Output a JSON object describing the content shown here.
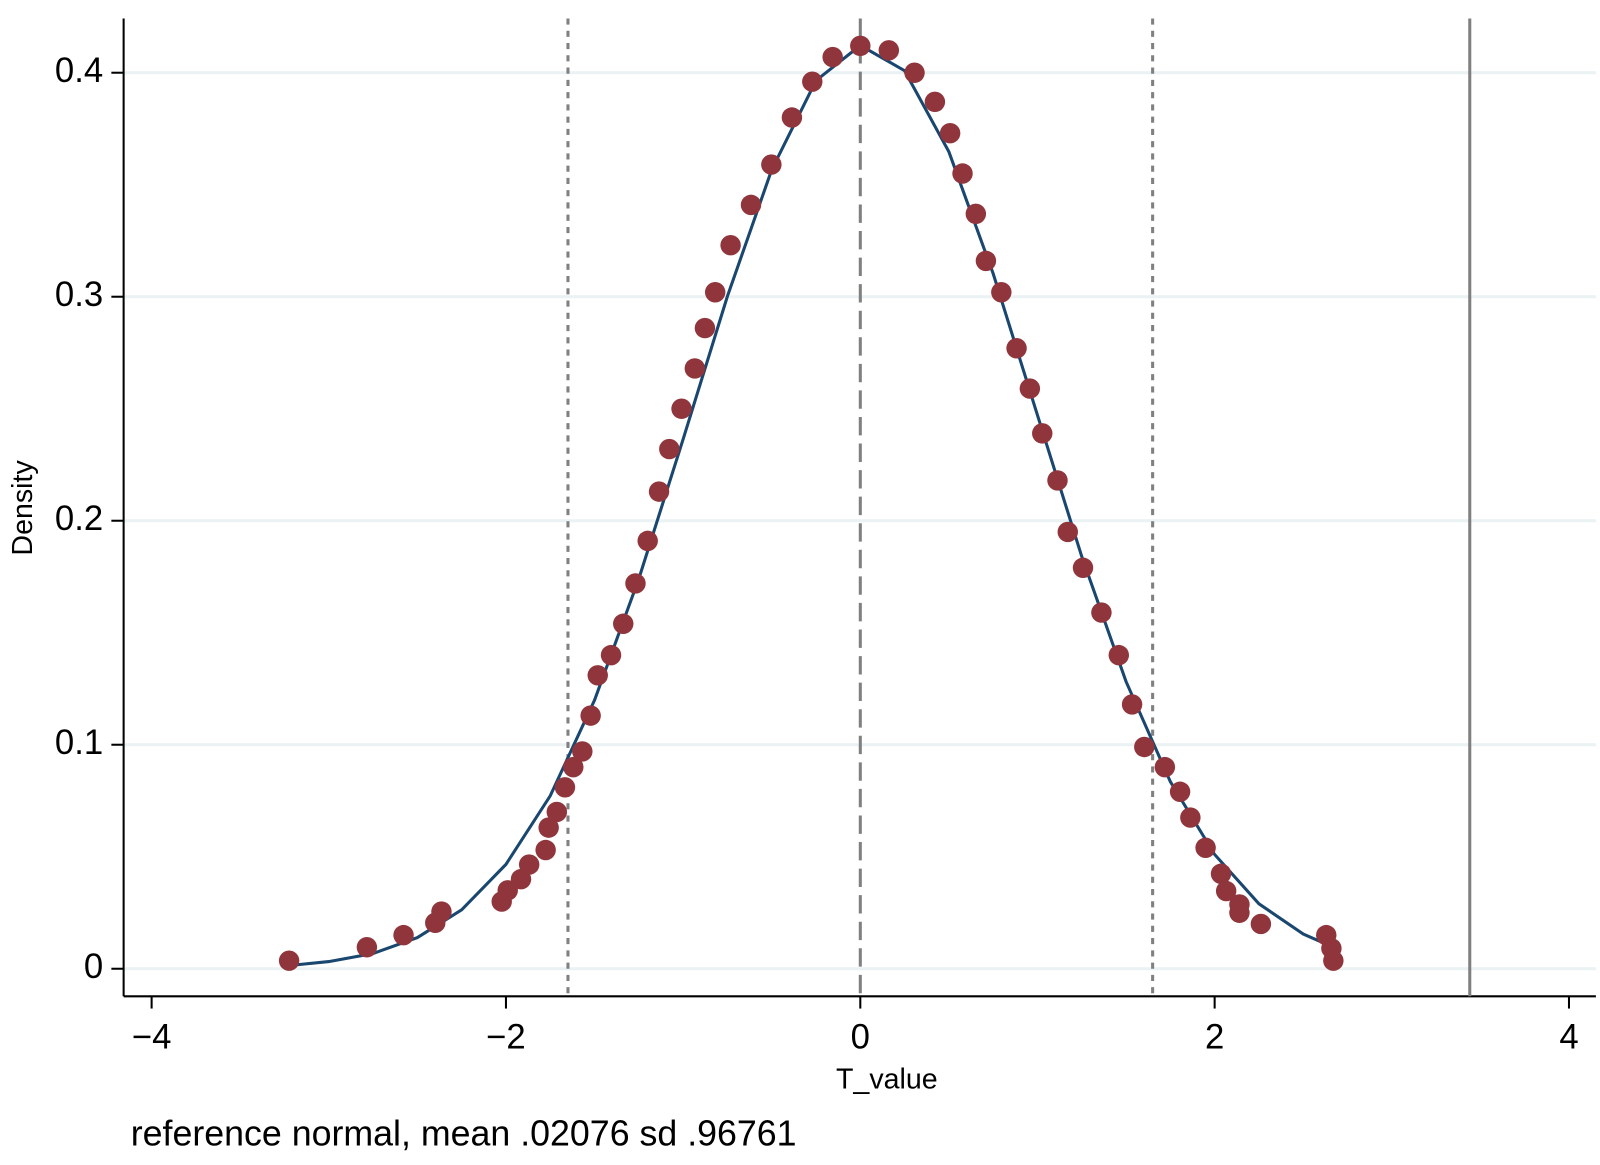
{
  "chart_data": {
    "type": "scatter",
    "xlabel": "T_value",
    "ylabel": "Density",
    "note": "reference normal, mean .02076 sd .96761",
    "xlim": [
      -4.158,
      4.152
    ],
    "ylim": [
      -0.0123,
      0.4242
    ],
    "xticks": [
      {
        "value": -4,
        "label": "−4"
      },
      {
        "value": -2,
        "label": "−2"
      },
      0,
      2,
      4
    ],
    "yticks": [
      0,
      0.1,
      0.2,
      0.3,
      0.4
    ],
    "grid": true,
    "series": [
      {
        "type": "line",
        "color": "#1a476f",
        "x": [
          -3.2,
          -3.0,
          -2.75,
          -2.5,
          -2.25,
          -2.0,
          -1.75,
          -1.5,
          -1.25,
          -1.0,
          -0.75,
          -0.5,
          -0.25,
          0,
          0.25,
          0.5,
          0.75,
          1.0,
          1.25,
          1.5,
          1.75,
          2.0,
          2.25,
          2.5,
          2.65
        ],
        "values": [
          0.0016,
          0.0032,
          0.0068,
          0.0139,
          0.0263,
          0.0466,
          0.0772,
          0.1199,
          0.1741,
          0.2364,
          0.3002,
          0.3567,
          0.3965,
          0.4122,
          0.4009,
          0.3647,
          0.3103,
          0.2471,
          0.184,
          0.1282,
          0.0835,
          0.051,
          0.029,
          0.0155,
          0.0103
        ]
      },
      {
        "type": "scatter",
        "color": "#90353b",
        "x": [
          -3.224,
          -2.785,
          -2.578,
          -2.399,
          -2.364,
          -2.024,
          -1.99,
          -1.915,
          -1.869,
          -1.776,
          -1.759,
          -1.713,
          -1.667,
          -1.62,
          -1.569,
          -1.522,
          -1.482,
          -1.407,
          -1.338,
          -1.269,
          -1.2,
          -1.136,
          -1.078,
          -1.009,
          -0.934,
          -0.877,
          -0.819,
          -0.732,
          -0.617,
          -0.502,
          -0.386,
          -0.271,
          -0.156,
          0,
          0.161,
          0.306,
          0.421,
          0.507,
          0.577,
          0.652,
          0.709,
          0.796,
          0.882,
          0.957,
          1.027,
          1.113,
          1.171,
          1.257,
          1.361,
          1.459,
          1.534,
          1.603,
          1.719,
          1.805,
          1.863,
          1.949,
          2.036,
          2.065,
          2.14,
          2.14,
          2.261,
          2.63,
          2.659,
          2.67
        ],
        "values": [
          0.0036,
          0.0096,
          0.015,
          0.0205,
          0.0255,
          0.03,
          0.035,
          0.04,
          0.0465,
          0.053,
          0.063,
          0.07,
          0.081,
          0.09,
          0.097,
          0.113,
          0.131,
          0.14,
          0.154,
          0.172,
          0.191,
          0.213,
          0.232,
          0.25,
          0.268,
          0.286,
          0.302,
          0.323,
          0.341,
          0.359,
          0.38,
          0.396,
          0.407,
          0.412,
          0.41,
          0.4,
          0.387,
          0.373,
          0.355,
          0.337,
          0.316,
          0.302,
          0.277,
          0.259,
          0.239,
          0.218,
          0.195,
          0.179,
          0.159,
          0.14,
          0.118,
          0.099,
          0.09,
          0.079,
          0.0675,
          0.054,
          0.0424,
          0.0347,
          0.0287,
          0.025,
          0.02,
          0.015,
          0.0091,
          0.0036
        ]
      }
    ],
    "vlines": [
      {
        "x": -1.65,
        "style": "dotted",
        "color": "#808080"
      },
      {
        "x": 0,
        "style": "dashed",
        "color": "#808080"
      },
      {
        "x": 1.65,
        "style": "dotted",
        "color": "#808080"
      },
      {
        "x": 3.44,
        "style": "solid",
        "color": "#808080"
      }
    ]
  }
}
